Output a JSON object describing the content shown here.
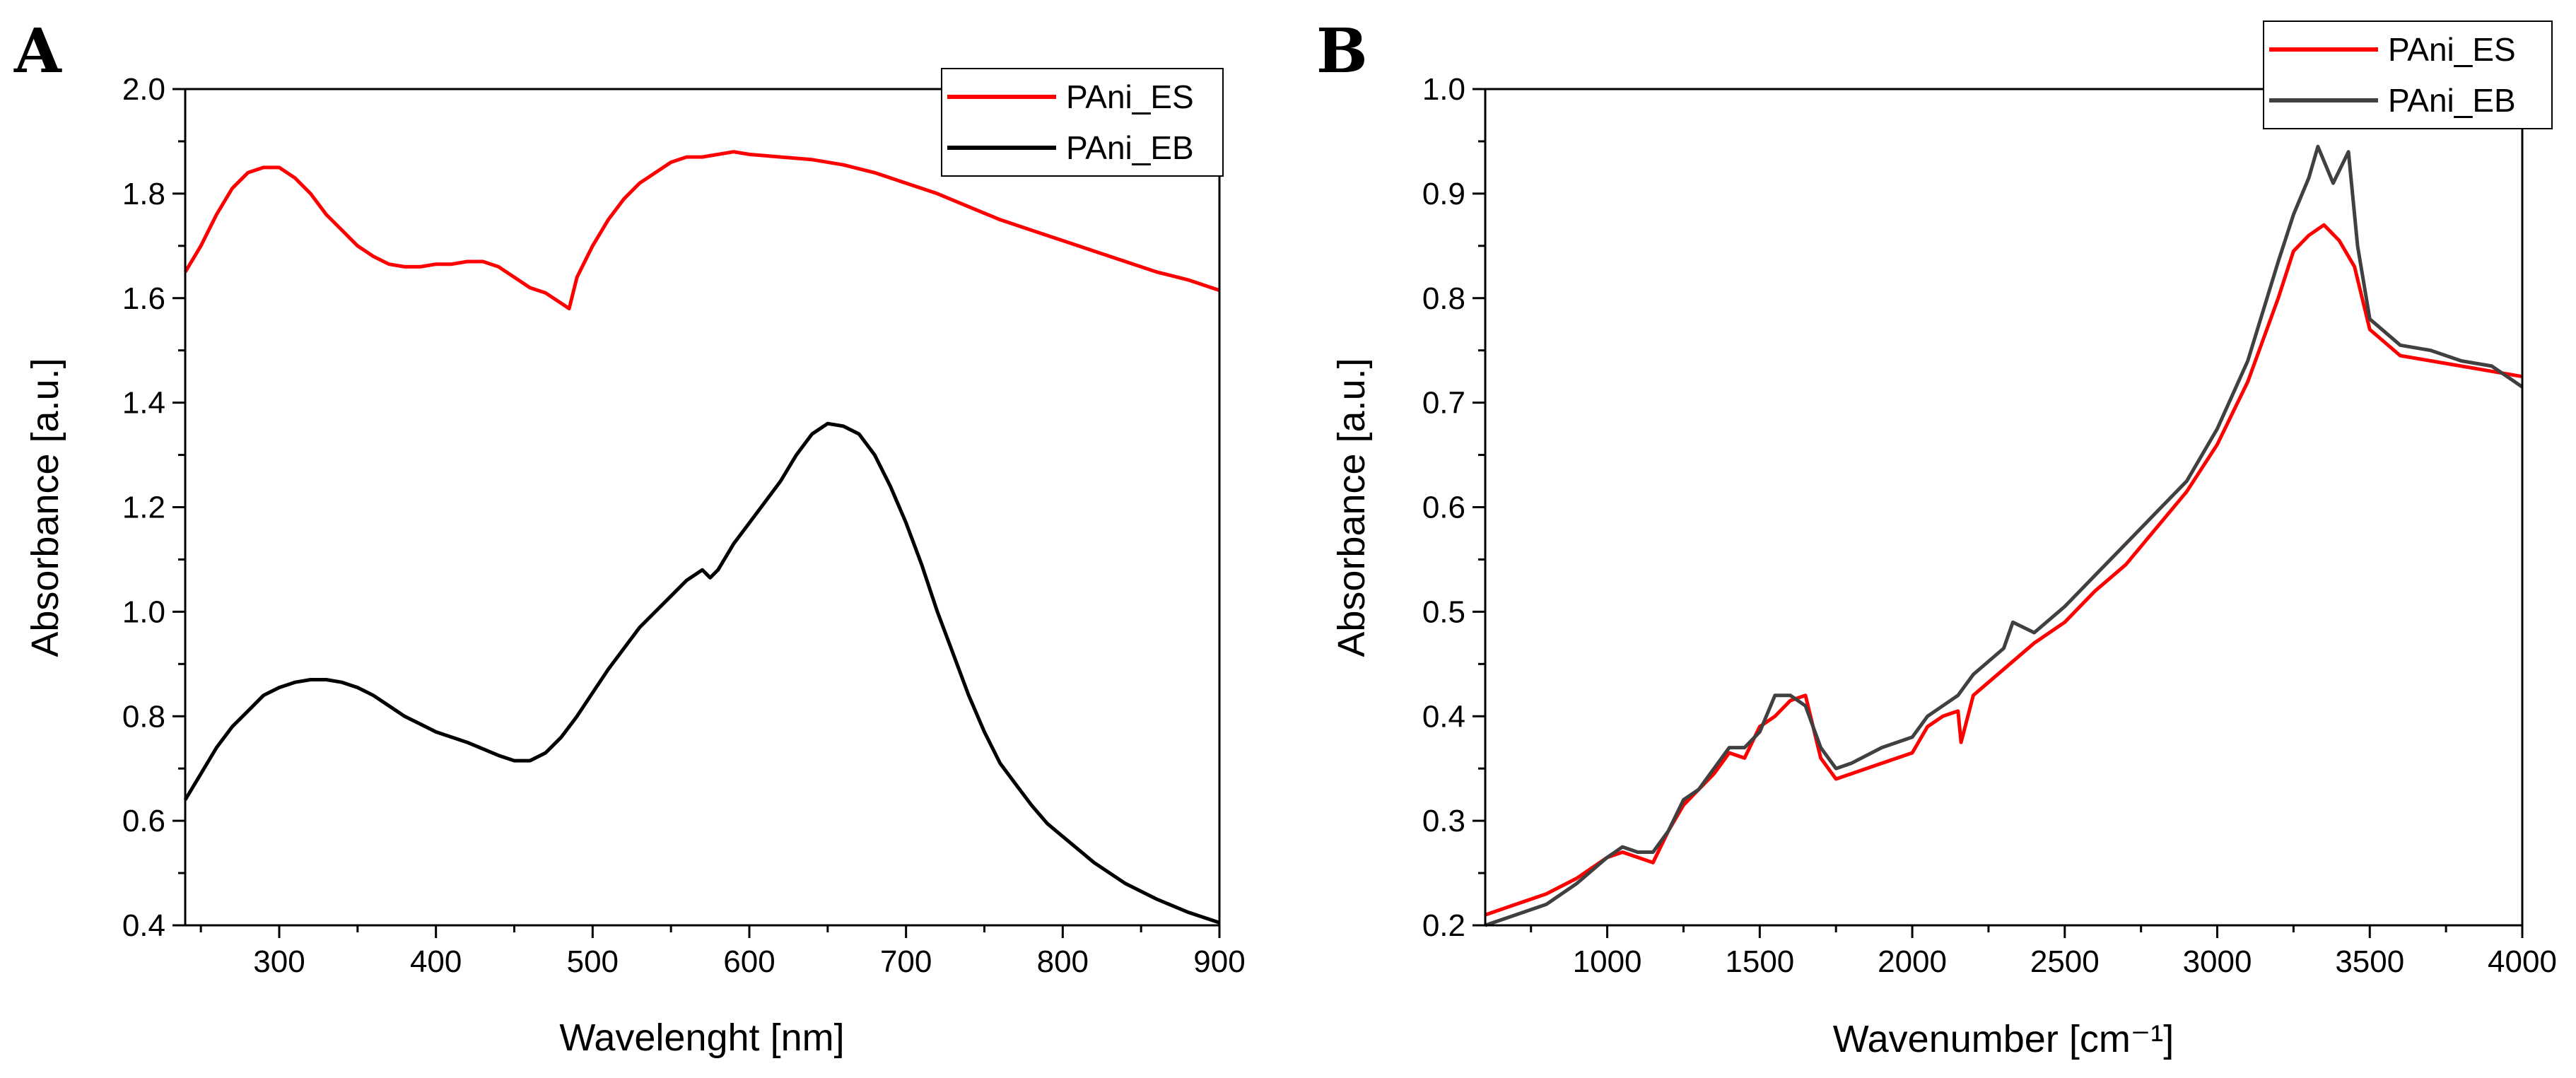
{
  "chart_data": [
    {
      "panel": "A",
      "type": "line",
      "title": "",
      "xlabel": "Wavelenght [nm]",
      "ylabel": "Absorbance [a.u.]",
      "xlim": [
        240,
        900
      ],
      "ylim": [
        0.4,
        2.0
      ],
      "xticks": [
        300,
        400,
        500,
        600,
        700,
        800,
        900
      ],
      "yticks": [
        0.4,
        0.6,
        0.8,
        1.0,
        1.2,
        1.4,
        1.6,
        1.8,
        2.0
      ],
      "legend_position": "top-right",
      "grid": false,
      "series": [
        {
          "name": "PAni_ES",
          "color": "#ff0000",
          "x": [
            240,
            250,
            260,
            270,
            280,
            290,
            300,
            310,
            320,
            330,
            340,
            350,
            360,
            370,
            380,
            390,
            400,
            410,
            420,
            430,
            440,
            450,
            460,
            470,
            480,
            485,
            490,
            500,
            510,
            520,
            530,
            540,
            550,
            560,
            570,
            580,
            590,
            600,
            620,
            640,
            660,
            680,
            700,
            720,
            740,
            760,
            780,
            800,
            820,
            840,
            860,
            880,
            900
          ],
          "y": [
            1.65,
            1.7,
            1.76,
            1.81,
            1.84,
            1.85,
            1.85,
            1.83,
            1.8,
            1.76,
            1.73,
            1.7,
            1.68,
            1.665,
            1.66,
            1.66,
            1.665,
            1.665,
            1.67,
            1.67,
            1.66,
            1.64,
            1.62,
            1.61,
            1.59,
            1.58,
            1.64,
            1.7,
            1.75,
            1.79,
            1.82,
            1.84,
            1.86,
            1.87,
            1.87,
            1.875,
            1.88,
            1.875,
            1.87,
            1.865,
            1.855,
            1.84,
            1.82,
            1.8,
            1.775,
            1.75,
            1.73,
            1.71,
            1.69,
            1.67,
            1.65,
            1.635,
            1.615
          ]
        },
        {
          "name": "PAni_EB",
          "color": "#000000",
          "x": [
            240,
            250,
            260,
            270,
            280,
            290,
            300,
            310,
            320,
            330,
            340,
            350,
            360,
            370,
            380,
            390,
            400,
            420,
            440,
            450,
            460,
            470,
            480,
            490,
            500,
            510,
            520,
            530,
            540,
            550,
            560,
            570,
            575,
            580,
            590,
            600,
            610,
            620,
            630,
            640,
            650,
            660,
            670,
            680,
            690,
            700,
            710,
            720,
            730,
            740,
            750,
            760,
            770,
            780,
            790,
            800,
            820,
            840,
            860,
            880,
            900
          ],
          "y": [
            0.64,
            0.69,
            0.74,
            0.78,
            0.81,
            0.84,
            0.855,
            0.865,
            0.87,
            0.87,
            0.865,
            0.855,
            0.84,
            0.82,
            0.8,
            0.785,
            0.77,
            0.75,
            0.725,
            0.715,
            0.715,
            0.73,
            0.76,
            0.8,
            0.845,
            0.89,
            0.93,
            0.97,
            1.0,
            1.03,
            1.06,
            1.08,
            1.065,
            1.08,
            1.13,
            1.17,
            1.21,
            1.25,
            1.3,
            1.34,
            1.36,
            1.355,
            1.34,
            1.3,
            1.24,
            1.17,
            1.09,
            1.0,
            0.92,
            0.84,
            0.77,
            0.71,
            0.67,
            0.63,
            0.595,
            0.57,
            0.52,
            0.48,
            0.45,
            0.425,
            0.405
          ]
        }
      ]
    },
    {
      "panel": "B",
      "type": "line",
      "title": "",
      "xlabel": "Wavenumber [cm⁻¹]",
      "ylabel": "Absorbance [a.u.]",
      "xlim": [
        600,
        4000
      ],
      "ylim": [
        0.2,
        1.0
      ],
      "xticks": [
        1000,
        1500,
        2000,
        2500,
        3000,
        3500,
        4000
      ],
      "yticks": [
        0.2,
        0.3,
        0.4,
        0.5,
        0.6,
        0.7,
        0.8,
        0.9,
        1.0
      ],
      "legend_position": "top-right",
      "grid": false,
      "series": [
        {
          "name": "PAni_ES",
          "color": "#ff0000",
          "x": [
            600,
            700,
            800,
            900,
            1000,
            1050,
            1100,
            1150,
            1200,
            1250,
            1300,
            1350,
            1400,
            1450,
            1500,
            1550,
            1600,
            1650,
            1700,
            1750,
            1800,
            1900,
            2000,
            2050,
            2100,
            2150,
            2160,
            2200,
            2300,
            2400,
            2500,
            2600,
            2700,
            2800,
            2900,
            3000,
            3100,
            3200,
            3250,
            3300,
            3350,
            3400,
            3450,
            3500,
            3600,
            3700,
            3800,
            3900,
            4000
          ],
          "y": [
            0.21,
            0.22,
            0.23,
            0.245,
            0.265,
            0.27,
            0.265,
            0.26,
            0.29,
            0.315,
            0.33,
            0.345,
            0.365,
            0.36,
            0.39,
            0.4,
            0.415,
            0.42,
            0.36,
            0.34,
            0.345,
            0.355,
            0.365,
            0.39,
            0.4,
            0.405,
            0.375,
            0.42,
            0.445,
            0.47,
            0.49,
            0.52,
            0.545,
            0.58,
            0.615,
            0.66,
            0.72,
            0.8,
            0.845,
            0.86,
            0.87,
            0.855,
            0.83,
            0.77,
            0.745,
            0.74,
            0.735,
            0.73,
            0.725
          ]
        },
        {
          "name": "PAni_EB",
          "color": "#404040",
          "x": [
            600,
            700,
            800,
            900,
            1000,
            1050,
            1100,
            1150,
            1200,
            1250,
            1300,
            1350,
            1400,
            1450,
            1500,
            1550,
            1600,
            1650,
            1700,
            1750,
            1800,
            1900,
            2000,
            2050,
            2100,
            2150,
            2200,
            2300,
            2330,
            2400,
            2500,
            2600,
            2700,
            2800,
            2900,
            3000,
            3100,
            3200,
            3250,
            3300,
            3330,
            3380,
            3430,
            3460,
            3500,
            3600,
            3700,
            3800,
            3900,
            4000
          ],
          "y": [
            0.2,
            0.21,
            0.22,
            0.24,
            0.265,
            0.275,
            0.27,
            0.27,
            0.29,
            0.32,
            0.33,
            0.35,
            0.37,
            0.37,
            0.385,
            0.42,
            0.42,
            0.41,
            0.37,
            0.35,
            0.355,
            0.37,
            0.38,
            0.4,
            0.41,
            0.42,
            0.44,
            0.465,
            0.49,
            0.48,
            0.505,
            0.535,
            0.565,
            0.595,
            0.625,
            0.675,
            0.74,
            0.835,
            0.88,
            0.915,
            0.945,
            0.91,
            0.94,
            0.85,
            0.78,
            0.755,
            0.75,
            0.74,
            0.735,
            0.715
          ]
        }
      ]
    }
  ],
  "panels": [
    {
      "letter": "A"
    },
    {
      "letter": "B"
    }
  ]
}
